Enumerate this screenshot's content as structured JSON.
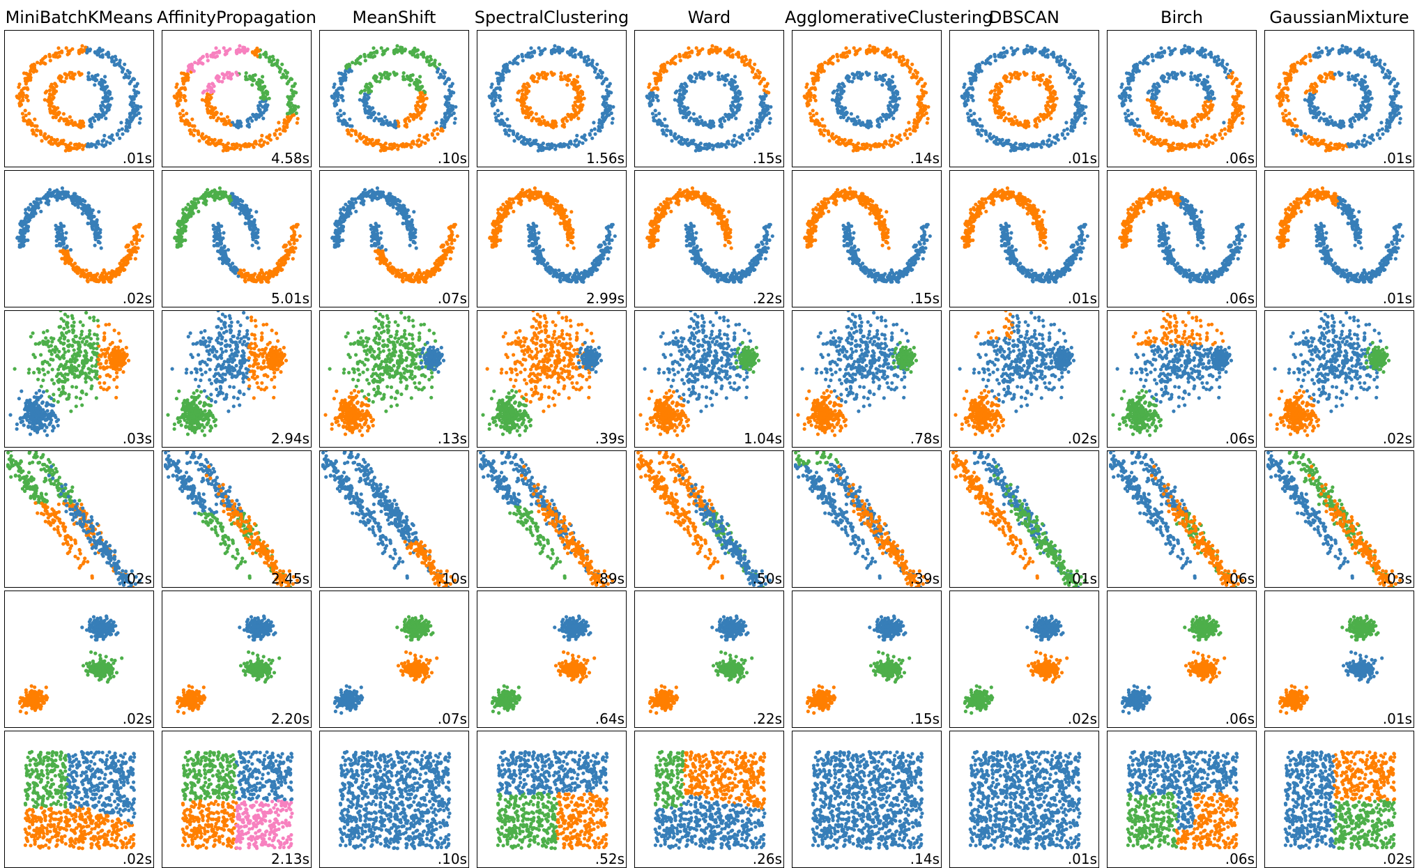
{
  "colors": {
    "blue": "#377eb8",
    "orange": "#ff7f00",
    "green": "#4daf4a",
    "pink": "#f781bf"
  },
  "chart_data": {
    "type": "scatter",
    "layout": "grid of small-multiple scatter panels, rows = datasets, columns = clustering algorithms",
    "columns": [
      "MiniBatchKMeans",
      "AffinityPropagation",
      "MeanShift",
      "SpectralClustering",
      "Ward",
      "AgglomerativeClustering",
      "DBSCAN",
      "Birch",
      "GaussianMixture"
    ],
    "rows": [
      {
        "times": [
          ".01s",
          "4.58s",
          ".10s",
          "1.56s",
          ".15s",
          ".14s",
          ".01s",
          ".06s",
          ".01s"
        ],
        "colorings": [
          "split_vertical",
          "circles_four",
          "circles_mixed_ms",
          "circles_ok_inner_orange",
          "circles_ok_inner_blue_ward",
          "circles_ok_outer_orange",
          "circles_ok_inner_orange",
          "circles_birch",
          "circles_gmm"
        ]
      },
      {
        "times": [
          ".02s",
          "5.01s",
          ".07s",
          "2.99s",
          ".22s",
          ".15s",
          ".01s",
          ".06s",
          ".01s"
        ],
        "colorings": [
          "moons_km",
          "moons_ap",
          "moons_km",
          "moons_ok",
          "moons_ok",
          "moons_ok",
          "moons_ok",
          "moons_birch",
          "moons_birch"
        ]
      },
      {
        "times": [
          ".03s",
          "2.94s",
          ".13s",
          ".39s",
          "1.04s",
          ".78s",
          ".02s",
          ".06s",
          ".02s"
        ],
        "colorings": [
          "varied_km",
          "varied_ap",
          "varied_ms",
          "varied_sc",
          "varied_ok",
          "varied_ok",
          "varied_db",
          "varied_birch",
          "varied_ok"
        ]
      },
      {
        "times": [
          ".02s",
          "2.45s",
          ".10s",
          ".89s",
          ".50s",
          ".39s",
          ".01s",
          ".06s",
          ".03s"
        ],
        "colorings": [
          "aniso_km",
          "aniso_ap",
          "aniso_ms",
          "aniso_sc",
          "aniso_ward",
          "aniso_agg",
          "aniso_db",
          "aniso_birch",
          "aniso_gmm"
        ]
      },
      {
        "times": [
          ".02s",
          "2.20s",
          ".07s",
          ".64s",
          ".22s",
          ".15s",
          ".02s",
          ".06s",
          ".01s"
        ],
        "colorings": [
          "blobs_a",
          "blobs_a",
          "blobs_ms",
          "blobs_sc",
          "blobs_a",
          "blobs_a",
          "blobs_db",
          "blobs_birch",
          "blobs_gmm"
        ]
      },
      {
        "times": [
          ".02s",
          "2.13s",
          ".10s",
          ".52s",
          ".26s",
          ".14s",
          ".01s",
          ".06s",
          ".02s"
        ],
        "colorings": [
          "uni_km",
          "uni_ap",
          "uni_one",
          "uni_sc",
          "uni_ward",
          "uni_one",
          "uni_one",
          "uni_birch",
          "uni_gmm"
        ]
      }
    ],
    "grid": false,
    "ticks": false
  }
}
